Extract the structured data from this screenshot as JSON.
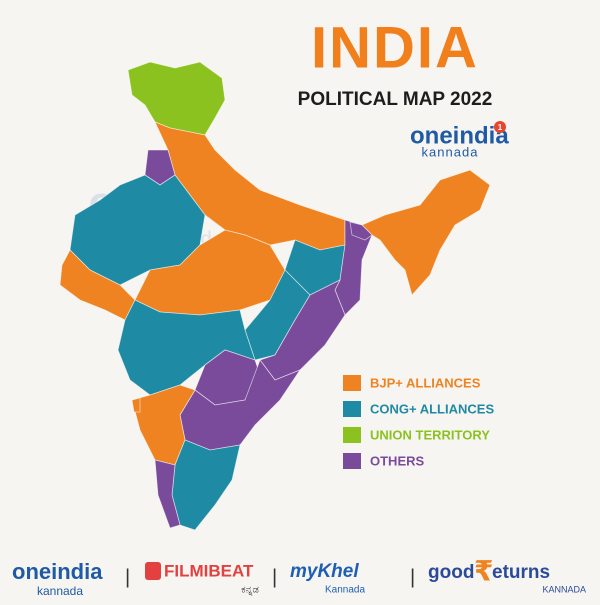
{
  "header": {
    "title": "INDIA",
    "subtitle": "POLITICAL MAP 2022"
  },
  "brand": {
    "name": "oneindia",
    "badge": "1",
    "sub": "kannada"
  },
  "watermark": {
    "name": "oneindia",
    "sub": "kannada"
  },
  "legend": [
    {
      "label": "BJP+ ALLIANCES",
      "color": "#f08321"
    },
    {
      "label": "CONG+ ALLIANCES",
      "color": "#1f8aa3"
    },
    {
      "label": "UNION TERRITORY",
      "color": "#8cc21f"
    },
    {
      "label": "OTHERS",
      "color": "#7a4a9b"
    }
  ],
  "footer": {
    "oneindia": {
      "name": "oneindia",
      "sub": "kannada"
    },
    "filmibeat": {
      "name": "FILMIBEAT",
      "sub": "ಕನ್ನಡ"
    },
    "mykhel": {
      "name": "myKhel",
      "sub": "Kannada"
    },
    "goodreturns": {
      "name": "good",
      "symbol": "₹",
      "rest": "eturns",
      "sub": "KANNADA"
    }
  }
}
